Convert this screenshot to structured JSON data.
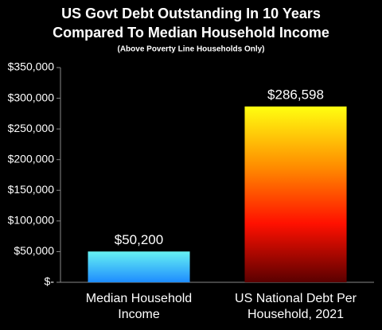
{
  "chart_data": {
    "type": "bar",
    "title": [
      "US Govt Debt Outstanding In 10 Years",
      "Compared To Median Household Income"
    ],
    "subtitle": "(Above Poverty Line Households Only)",
    "categories": [
      "Median Household Income",
      "US National Debt Per Household, 2021"
    ],
    "values": [
      50200,
      286598
    ],
    "value_labels": [
      "$50,200",
      "$286,598"
    ],
    "colors": [
      [
        "#66f2f2",
        "#1e8cff"
      ],
      [
        "#ffff10",
        "#ff9000",
        "#ff1000",
        "#5a0000"
      ]
    ],
    "ylim": [
      0,
      350000
    ],
    "yticks": [
      {
        "value": 0,
        "label": "$-"
      },
      {
        "value": 50000,
        "label": "$50,000"
      },
      {
        "value": 100000,
        "label": "$100,000"
      },
      {
        "value": 150000,
        "label": "$150,000"
      },
      {
        "value": 200000,
        "label": "$200,000"
      },
      {
        "value": 250000,
        "label": "$250,000"
      },
      {
        "value": 300000,
        "label": "$300,000"
      },
      {
        "value": 350000,
        "label": "$350,000"
      }
    ]
  }
}
